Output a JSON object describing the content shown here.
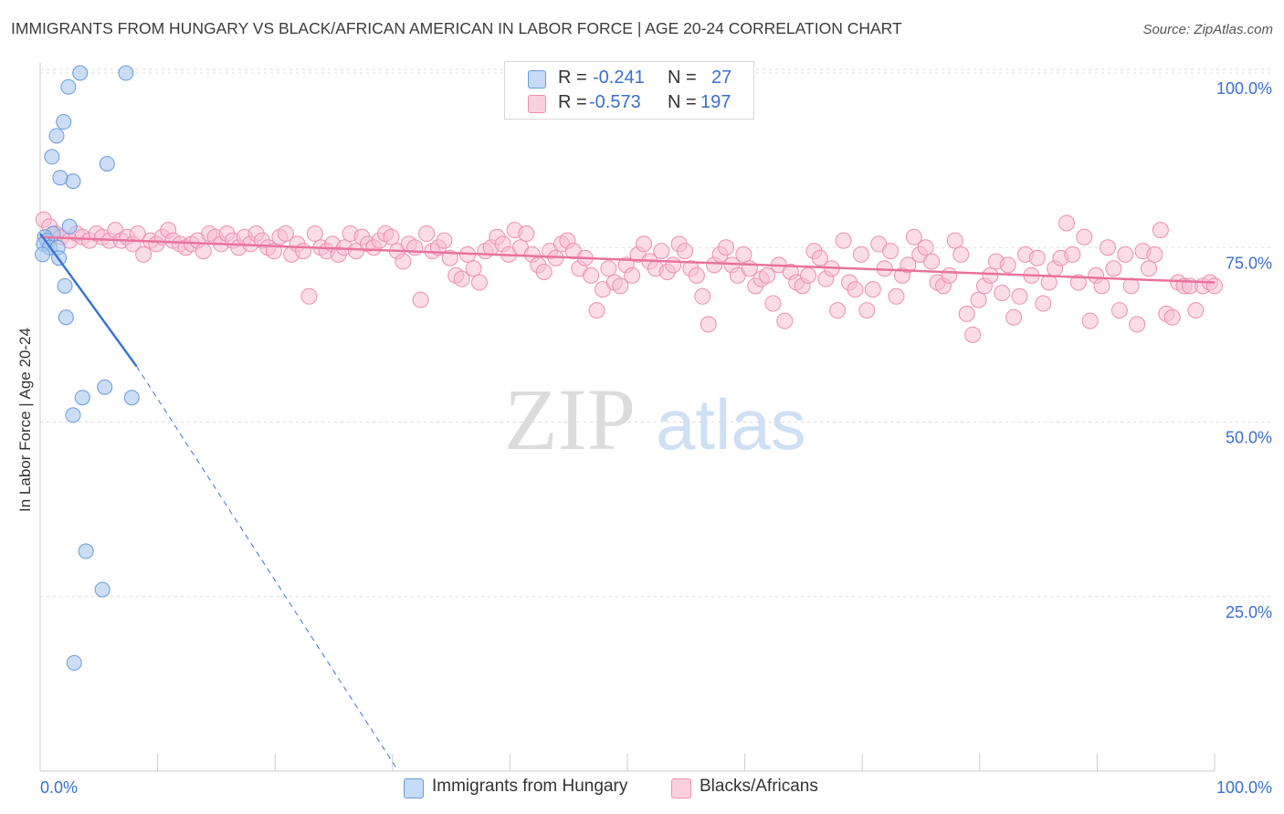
{
  "title": "IMMIGRANTS FROM HUNGARY VS BLACK/AFRICAN AMERICAN IN LABOR FORCE | AGE 20-24 CORRELATION CHART",
  "source": "Source: ZipAtlas.com",
  "watermark": {
    "part1": "ZIP",
    "part2": "atlas"
  },
  "legend": {
    "rows": [
      {
        "r_label": "R =",
        "r_value": "-0.241",
        "n_label": "N =",
        "n_value": "27"
      },
      {
        "r_label": "R =",
        "r_value": "-0.573",
        "n_label": "N =",
        "n_value": "197"
      }
    ]
  },
  "bottom_legend": {
    "series1": "Immigrants from Hungary",
    "series2": "Blacks/Africans"
  },
  "colors": {
    "blue_fill": "#a8c8f0",
    "blue_stroke": "#6a9ad8",
    "blue_line": "#3a74d6",
    "pink_fill": "#f8c0d4",
    "pink_stroke": "#ec8fb0",
    "pink_line": "#e8739c",
    "tick_label": "#3a6fd0",
    "grid": "#dddddd"
  },
  "chart_data": {
    "type": "scatter",
    "title": "IMMIGRANTS FROM HUNGARY VS BLACK/AFRICAN AMERICAN IN LABOR FORCE | AGE 20-24 CORRELATION CHART",
    "xlabel": "",
    "ylabel": "In Labor Force | Age 20-24",
    "xlim": [
      0,
      100
    ],
    "ylim": [
      0,
      100
    ],
    "x_ticks": [
      "0.0%",
      "100.0%"
    ],
    "y_ticks": [
      {
        "value": 100,
        "label": "100.0%"
      },
      {
        "value": 75,
        "label": "75.0%"
      },
      {
        "value": 50,
        "label": "50.0%"
      },
      {
        "value": 25,
        "label": "25.0%"
      }
    ],
    "grid": true,
    "legend_position": "top-center",
    "series": [
      {
        "name": "Immigrants from Hungary",
        "r": -0.241,
        "n": 27,
        "color": "#a8c8f0",
        "trend": {
          "x": [
            0,
            8.2
          ],
          "y": [
            77,
            58
          ],
          "dashed_to": [
            30.5,
            0
          ]
        },
        "points": [
          [
            3.4,
            100
          ],
          [
            7.3,
            100
          ],
          [
            2.4,
            98
          ],
          [
            2.0,
            93
          ],
          [
            1.4,
            91
          ],
          [
            1.0,
            88
          ],
          [
            2.8,
            84.5
          ],
          [
            5.7,
            87
          ],
          [
            1.7,
            85
          ],
          [
            2.5,
            78
          ],
          [
            1.1,
            77
          ],
          [
            0.4,
            76.5
          ],
          [
            0.6,
            76
          ],
          [
            0.3,
            75.5
          ],
          [
            0.8,
            75
          ],
          [
            1.5,
            75
          ],
          [
            0.2,
            74
          ],
          [
            1.6,
            73.5
          ],
          [
            2.1,
            69.5
          ],
          [
            2.2,
            65
          ],
          [
            3.6,
            53.5
          ],
          [
            5.5,
            55
          ],
          [
            7.8,
            53.5
          ],
          [
            2.8,
            51
          ],
          [
            3.9,
            31.5
          ],
          [
            5.3,
            26
          ],
          [
            2.9,
            15.5
          ]
        ]
      },
      {
        "name": "Blacks/Africans",
        "r": -0.573,
        "n": 197,
        "color": "#f8c0d4",
        "trend": {
          "x": [
            0,
            100
          ],
          "y": [
            76.5,
            70
          ]
        },
        "points": [
          [
            0.3,
            79
          ],
          [
            0.8,
            78
          ],
          [
            1.3,
            77
          ],
          [
            1.8,
            76.5
          ],
          [
            2.5,
            76
          ],
          [
            3.1,
            77
          ],
          [
            3.6,
            76.5
          ],
          [
            4.2,
            76
          ],
          [
            4.8,
            77
          ],
          [
            5.3,
            76.5
          ],
          [
            5.9,
            76
          ],
          [
            6.4,
            77.5
          ],
          [
            6.9,
            76
          ],
          [
            7.4,
            76.5
          ],
          [
            7.9,
            75.5
          ],
          [
            8.3,
            77
          ],
          [
            8.8,
            74
          ],
          [
            9.4,
            76
          ],
          [
            9.9,
            75.5
          ],
          [
            10.4,
            76.5
          ],
          [
            10.9,
            77.5
          ],
          [
            11.3,
            76
          ],
          [
            11.9,
            75.5
          ],
          [
            12.4,
            75
          ],
          [
            12.9,
            75.5
          ],
          [
            13.4,
            76
          ],
          [
            13.9,
            74.5
          ],
          [
            14.4,
            77
          ],
          [
            14.9,
            76.5
          ],
          [
            15.4,
            75.5
          ],
          [
            15.9,
            77
          ],
          [
            16.4,
            76
          ],
          [
            16.9,
            75
          ],
          [
            17.4,
            76.5
          ],
          [
            17.9,
            75.5
          ],
          [
            18.4,
            77
          ],
          [
            18.9,
            76
          ],
          [
            19.4,
            75
          ],
          [
            19.9,
            74.5
          ],
          [
            20.4,
            76.5
          ],
          [
            20.9,
            77
          ],
          [
            21.4,
            74
          ],
          [
            21.9,
            75.5
          ],
          [
            22.4,
            74.5
          ],
          [
            22.9,
            68
          ],
          [
            23.4,
            77
          ],
          [
            23.9,
            75
          ],
          [
            24.4,
            74.5
          ],
          [
            24.9,
            75.5
          ],
          [
            25.4,
            74
          ],
          [
            25.9,
            75
          ],
          [
            26.4,
            77
          ],
          [
            26.9,
            74.5
          ],
          [
            27.4,
            76.5
          ],
          [
            27.9,
            75.5
          ],
          [
            28.4,
            75
          ],
          [
            28.9,
            76
          ],
          [
            29.4,
            77
          ],
          [
            29.9,
            76.5
          ],
          [
            30.4,
            74.5
          ],
          [
            30.9,
            73
          ],
          [
            31.4,
            75.5
          ],
          [
            31.9,
            75
          ],
          [
            32.4,
            67.5
          ],
          [
            32.9,
            77
          ],
          [
            33.4,
            74.5
          ],
          [
            33.9,
            75
          ],
          [
            34.4,
            76
          ],
          [
            34.9,
            73.5
          ],
          [
            35.4,
            71
          ],
          [
            35.9,
            70.5
          ],
          [
            36.4,
            74
          ],
          [
            36.9,
            72
          ],
          [
            37.4,
            70
          ],
          [
            37.9,
            74.5
          ],
          [
            38.4,
            75
          ],
          [
            38.9,
            76.5
          ],
          [
            39.4,
            75.5
          ],
          [
            39.9,
            74
          ],
          [
            40.4,
            77.5
          ],
          [
            40.9,
            75
          ],
          [
            41.4,
            77
          ],
          [
            41.9,
            74
          ],
          [
            42.4,
            72.5
          ],
          [
            42.9,
            71.5
          ],
          [
            43.4,
            74.5
          ],
          [
            43.9,
            73.5
          ],
          [
            44.4,
            75.5
          ],
          [
            44.9,
            76
          ],
          [
            45.4,
            74.5
          ],
          [
            45.9,
            72
          ],
          [
            46.4,
            73.5
          ],
          [
            46.9,
            71
          ],
          [
            47.4,
            66
          ],
          [
            47.9,
            69
          ],
          [
            48.4,
            72
          ],
          [
            48.9,
            70
          ],
          [
            49.4,
            69.5
          ],
          [
            49.9,
            72.5
          ],
          [
            50.4,
            71
          ],
          [
            50.9,
            74
          ],
          [
            51.4,
            75.5
          ],
          [
            51.9,
            73
          ],
          [
            52.4,
            72
          ],
          [
            52.9,
            74.5
          ],
          [
            53.4,
            71.5
          ],
          [
            53.9,
            72.5
          ],
          [
            54.4,
            75.5
          ],
          [
            54.9,
            74.5
          ],
          [
            55.4,
            72
          ],
          [
            55.9,
            71
          ],
          [
            56.4,
            68
          ],
          [
            56.9,
            64
          ],
          [
            57.4,
            72.5
          ],
          [
            57.9,
            74
          ],
          [
            58.4,
            75
          ],
          [
            58.9,
            72.5
          ],
          [
            59.4,
            71
          ],
          [
            59.9,
            74
          ],
          [
            60.4,
            72
          ],
          [
            60.9,
            69.5
          ],
          [
            61.4,
            70.5
          ],
          [
            61.9,
            71
          ],
          [
            62.4,
            67
          ],
          [
            62.9,
            72.5
          ],
          [
            63.4,
            64.5
          ],
          [
            63.9,
            71.5
          ],
          [
            64.4,
            70
          ],
          [
            64.9,
            69.5
          ],
          [
            65.4,
            71
          ],
          [
            65.9,
            74.5
          ],
          [
            66.4,
            73.5
          ],
          [
            66.9,
            70.5
          ],
          [
            67.4,
            72
          ],
          [
            67.9,
            66
          ],
          [
            68.4,
            76
          ],
          [
            68.9,
            70
          ],
          [
            69.4,
            69
          ],
          [
            69.9,
            74
          ],
          [
            70.4,
            66
          ],
          [
            70.9,
            69
          ],
          [
            71.4,
            75.5
          ],
          [
            71.9,
            72
          ],
          [
            72.4,
            74.5
          ],
          [
            72.9,
            68
          ],
          [
            73.4,
            71
          ],
          [
            73.9,
            72.5
          ],
          [
            74.4,
            76.5
          ],
          [
            74.9,
            74
          ],
          [
            75.4,
            75
          ],
          [
            75.9,
            73
          ],
          [
            76.4,
            70
          ],
          [
            76.9,
            69.5
          ],
          [
            77.4,
            71
          ],
          [
            77.9,
            76
          ],
          [
            78.4,
            74
          ],
          [
            78.9,
            65.5
          ],
          [
            79.4,
            62.5
          ],
          [
            79.9,
            67.5
          ],
          [
            80.4,
            69.5
          ],
          [
            80.9,
            71
          ],
          [
            81.4,
            73
          ],
          [
            81.9,
            68.5
          ],
          [
            82.4,
            72.5
          ],
          [
            82.9,
            65
          ],
          [
            83.4,
            68
          ],
          [
            83.9,
            74
          ],
          [
            84.4,
            71
          ],
          [
            84.9,
            73.5
          ],
          [
            85.4,
            67
          ],
          [
            85.9,
            70
          ],
          [
            86.4,
            72
          ],
          [
            86.9,
            73.5
          ],
          [
            87.4,
            78.5
          ],
          [
            87.9,
            74
          ],
          [
            88.4,
            70
          ],
          [
            88.9,
            76.5
          ],
          [
            89.4,
            64.5
          ],
          [
            89.9,
            71
          ],
          [
            90.4,
            69.5
          ],
          [
            90.9,
            75
          ],
          [
            91.4,
            72
          ],
          [
            91.9,
            66
          ],
          [
            92.4,
            74
          ],
          [
            92.9,
            69.5
          ],
          [
            93.4,
            64
          ],
          [
            93.9,
            74.5
          ],
          [
            94.4,
            72
          ],
          [
            94.9,
            74
          ],
          [
            95.4,
            77.5
          ],
          [
            95.9,
            65.5
          ],
          [
            96.4,
            65
          ],
          [
            96.9,
            70
          ],
          [
            97.4,
            69.5
          ],
          [
            97.9,
            69.5
          ],
          [
            98.4,
            66
          ],
          [
            99.0,
            69.5
          ],
          [
            99.6,
            70
          ],
          [
            100.0,
            69.5
          ]
        ]
      }
    ]
  }
}
